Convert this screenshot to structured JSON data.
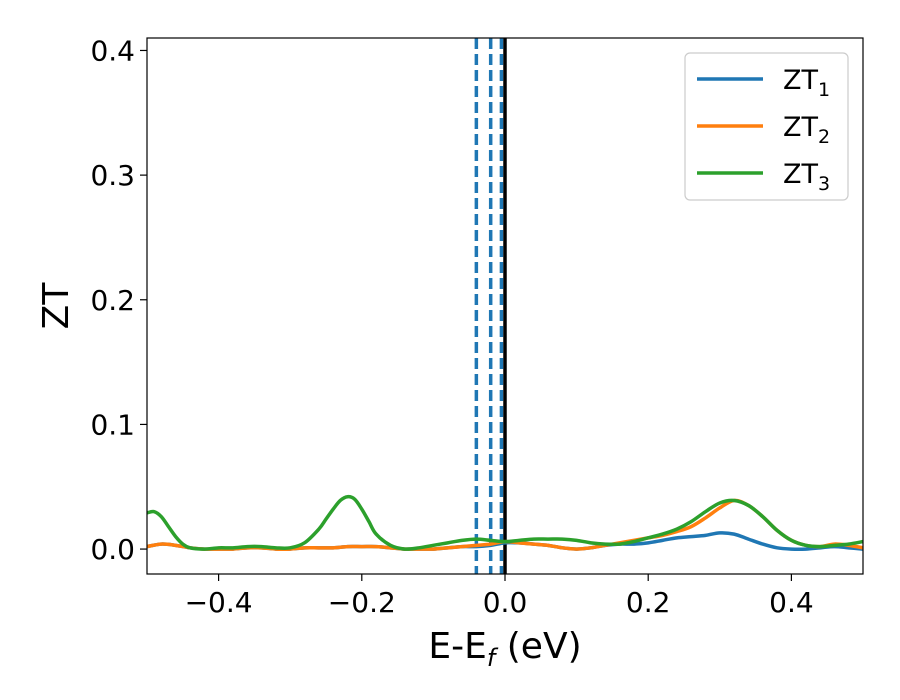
{
  "chart_data": {
    "type": "line",
    "title": "",
    "xlabel": {
      "main": "E-E",
      "sub": "f",
      "suffix": " (eV)"
    },
    "ylabel": "ZT",
    "xlim": [
      -0.5,
      0.5
    ],
    "ylim": [
      -0.02,
      0.41
    ],
    "x_ticks": [
      -0.4,
      -0.2,
      0.0,
      0.2,
      0.4
    ],
    "x_tick_labels": [
      "−0.4",
      "−0.2",
      "0.0",
      "0.2",
      "0.4"
    ],
    "y_ticks": [
      0.0,
      0.1,
      0.2,
      0.3,
      0.4
    ],
    "y_tick_labels": [
      "0.0",
      "0.1",
      "0.2",
      "0.3",
      "0.4"
    ],
    "grid": false,
    "legend_position": "top-right",
    "vlines": [
      {
        "x": -0.04,
        "style": "dashed",
        "color": "#1f77b4"
      },
      {
        "x": -0.02,
        "style": "dashed",
        "color": "#1f77b4"
      },
      {
        "x": -0.005,
        "style": "dashed",
        "color": "#1f77b4"
      },
      {
        "x": 0.0,
        "style": "solid",
        "color": "#000000"
      }
    ],
    "series": [
      {
        "name": "ZT",
        "sub": "1",
        "color": "#1f77b4",
        "x": [
          -0.5,
          -0.48,
          -0.46,
          -0.44,
          -0.42,
          -0.4,
          -0.38,
          -0.36,
          -0.34,
          -0.32,
          -0.3,
          -0.28,
          -0.26,
          -0.24,
          -0.22,
          -0.2,
          -0.18,
          -0.16,
          -0.14,
          -0.12,
          -0.1,
          -0.08,
          -0.06,
          -0.04,
          -0.02,
          0.0,
          0.02,
          0.04,
          0.06,
          0.08,
          0.1,
          0.12,
          0.14,
          0.16,
          0.18,
          0.2,
          0.22,
          0.24,
          0.26,
          0.28,
          0.3,
          0.32,
          0.34,
          0.36,
          0.38,
          0.4,
          0.42,
          0.44,
          0.46,
          0.48,
          0.5
        ],
        "y": [
          0.002,
          0.004,
          0.003,
          0.001,
          0.0,
          0.0,
          0.0,
          0.001,
          0.001,
          0.0,
          0.0,
          0.001,
          0.001,
          0.001,
          0.002,
          0.002,
          0.002,
          0.001,
          0.0,
          0.0,
          0.0,
          0.001,
          0.002,
          0.002,
          0.003,
          0.005,
          0.005,
          0.004,
          0.003,
          0.001,
          0.0,
          0.001,
          0.003,
          0.004,
          0.004,
          0.005,
          0.007,
          0.009,
          0.01,
          0.011,
          0.013,
          0.012,
          0.008,
          0.004,
          0.001,
          0.0,
          0.0,
          0.001,
          0.002,
          0.001,
          0.0
        ]
      },
      {
        "name": "ZT",
        "sub": "2",
        "color": "#ff7f0e",
        "x": [
          -0.5,
          -0.48,
          -0.46,
          -0.44,
          -0.42,
          -0.4,
          -0.38,
          -0.36,
          -0.34,
          -0.32,
          -0.3,
          -0.28,
          -0.26,
          -0.24,
          -0.22,
          -0.2,
          -0.18,
          -0.16,
          -0.14,
          -0.12,
          -0.1,
          -0.08,
          -0.06,
          -0.04,
          -0.02,
          0.0,
          0.02,
          0.04,
          0.06,
          0.08,
          0.1,
          0.12,
          0.14,
          0.16,
          0.18,
          0.2,
          0.22,
          0.24,
          0.26,
          0.28,
          0.3,
          0.32,
          0.34,
          0.36,
          0.38,
          0.4,
          0.42,
          0.44,
          0.46,
          0.48,
          0.5
        ],
        "y": [
          0.002,
          0.004,
          0.003,
          0.001,
          0.0,
          0.0,
          0.0,
          0.001,
          0.001,
          0.0,
          0.0,
          0.001,
          0.001,
          0.001,
          0.002,
          0.002,
          0.002,
          0.001,
          0.0,
          0.0,
          0.0,
          0.001,
          0.002,
          0.003,
          0.004,
          0.006,
          0.005,
          0.004,
          0.003,
          0.001,
          0.0,
          0.001,
          0.003,
          0.005,
          0.007,
          0.009,
          0.011,
          0.014,
          0.018,
          0.025,
          0.033,
          0.039,
          0.035,
          0.026,
          0.015,
          0.007,
          0.003,
          0.002,
          0.004,
          0.003,
          0.001
        ]
      },
      {
        "name": "ZT",
        "sub": "3",
        "color": "#2ca02c",
        "x": [
          -0.5,
          -0.49,
          -0.48,
          -0.47,
          -0.46,
          -0.45,
          -0.44,
          -0.42,
          -0.4,
          -0.38,
          -0.36,
          -0.34,
          -0.32,
          -0.3,
          -0.28,
          -0.26,
          -0.25,
          -0.24,
          -0.23,
          -0.22,
          -0.21,
          -0.2,
          -0.19,
          -0.18,
          -0.16,
          -0.14,
          -0.12,
          -0.1,
          -0.08,
          -0.06,
          -0.04,
          -0.02,
          0.0,
          0.02,
          0.04,
          0.06,
          0.08,
          0.1,
          0.12,
          0.14,
          0.16,
          0.18,
          0.2,
          0.22,
          0.24,
          0.26,
          0.28,
          0.3,
          0.32,
          0.34,
          0.36,
          0.38,
          0.4,
          0.42,
          0.44,
          0.46,
          0.48,
          0.5
        ],
        "y": [
          0.029,
          0.03,
          0.026,
          0.018,
          0.01,
          0.004,
          0.001,
          0.0,
          0.001,
          0.001,
          0.002,
          0.002,
          0.001,
          0.001,
          0.005,
          0.016,
          0.024,
          0.032,
          0.039,
          0.042,
          0.04,
          0.032,
          0.022,
          0.012,
          0.003,
          0.0,
          0.001,
          0.003,
          0.005,
          0.007,
          0.008,
          0.007,
          0.006,
          0.007,
          0.008,
          0.008,
          0.008,
          0.007,
          0.005,
          0.004,
          0.004,
          0.006,
          0.009,
          0.012,
          0.016,
          0.022,
          0.03,
          0.037,
          0.039,
          0.035,
          0.026,
          0.015,
          0.007,
          0.003,
          0.002,
          0.003,
          0.004,
          0.006
        ]
      }
    ]
  }
}
